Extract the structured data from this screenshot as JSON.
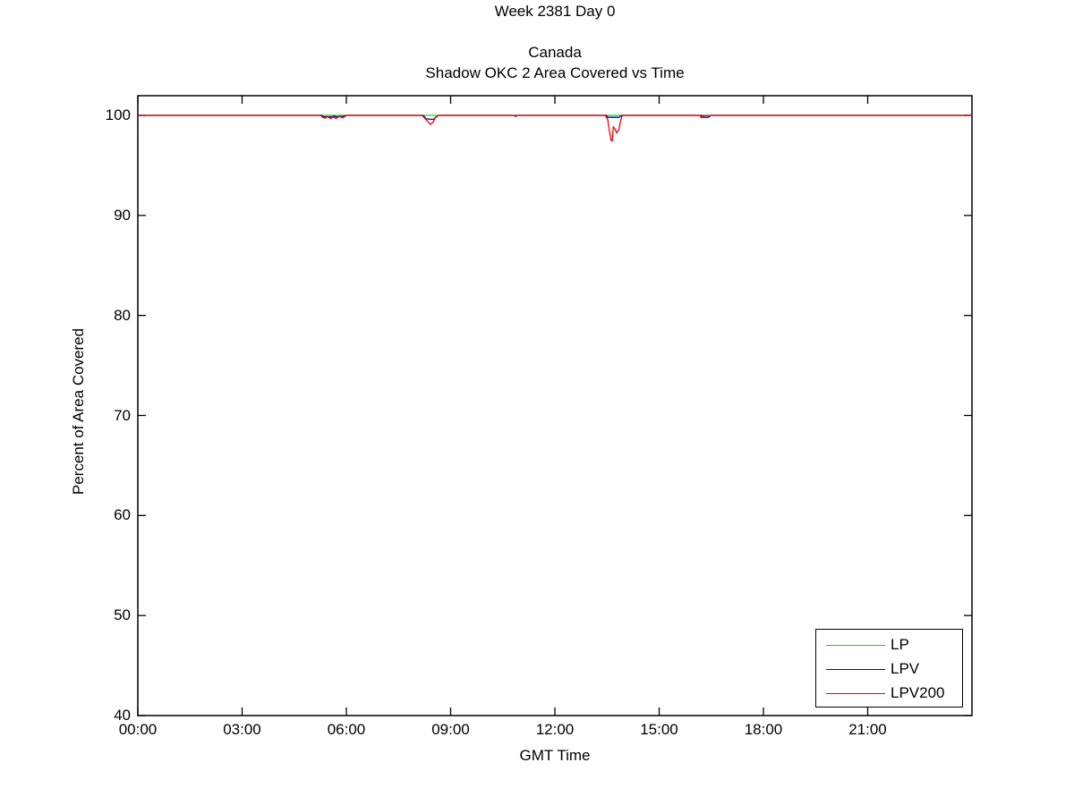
{
  "figure": {
    "suptitle": "Week 2381 Day 0",
    "title_line1": "Canada",
    "title_line2": "Shadow OKC 2 Area Covered vs Time",
    "xlabel": "GMT Time",
    "ylabel": "Percent of Area Covered"
  },
  "colors": {
    "axes": "#000000",
    "background": "#ffffff",
    "lp_green": "#00dd00",
    "lpv_blue": "#0000cc",
    "lpv200_red": "#ee0000"
  },
  "chart_data": {
    "type": "line",
    "title": "Canada — Shadow OKC 2 Area Covered vs Time",
    "suptitle": "Week 2381 Day 0",
    "xlabel": "GMT Time",
    "ylabel": "Percent of Area Covered",
    "grid": false,
    "legend_position": "bottom-right",
    "xlim_hours": [
      0,
      24
    ],
    "ylim": [
      40,
      102
    ],
    "x_ticks": [
      {
        "hour": 0,
        "label": "00:00"
      },
      {
        "hour": 3,
        "label": "03:00"
      },
      {
        "hour": 6,
        "label": "06:00"
      },
      {
        "hour": 9,
        "label": "09:00"
      },
      {
        "hour": 12,
        "label": "12:00"
      },
      {
        "hour": 15,
        "label": "15:00"
      },
      {
        "hour": 18,
        "label": "18:00"
      },
      {
        "hour": 21,
        "label": "21:00"
      }
    ],
    "y_ticks": [
      {
        "value": 100,
        "label": "100"
      },
      {
        "value": 90,
        "label": "90"
      },
      {
        "value": 80,
        "label": "80"
      },
      {
        "value": 70,
        "label": "70"
      },
      {
        "value": 60,
        "label": "60"
      },
      {
        "value": 50,
        "label": "50"
      },
      {
        "value": 40,
        "label": "40"
      }
    ],
    "series": [
      {
        "name": "LP",
        "color": "#00dd00",
        "points": [
          [
            0,
            100
          ],
          [
            24,
            100
          ]
        ]
      },
      {
        "name": "LPV",
        "color": "#0000cc",
        "points": [
          [
            0,
            100
          ],
          [
            5.3,
            100
          ],
          [
            5.35,
            99.85
          ],
          [
            5.6,
            99.85
          ],
          [
            5.65,
            99.95
          ],
          [
            5.7,
            99.85
          ],
          [
            5.9,
            99.9
          ],
          [
            6.0,
            100
          ],
          [
            8.21,
            100
          ],
          [
            8.3,
            99.65
          ],
          [
            8.5,
            99.6
          ],
          [
            8.65,
            100
          ],
          [
            10.84,
            100
          ],
          [
            10.87,
            99.88
          ],
          [
            10.9,
            100
          ],
          [
            13.48,
            100
          ],
          [
            13.52,
            99.8
          ],
          [
            13.85,
            99.8
          ],
          [
            13.92,
            100
          ],
          [
            16.22,
            100
          ],
          [
            16.26,
            99.8
          ],
          [
            16.42,
            99.8
          ],
          [
            16.48,
            100
          ],
          [
            24,
            100
          ]
        ]
      },
      {
        "name": "LPV200",
        "color": "#ee0000",
        "points": [
          [
            0,
            100
          ],
          [
            5.25,
            100
          ],
          [
            5.32,
            99.8
          ],
          [
            5.4,
            99.72
          ],
          [
            5.45,
            99.9
          ],
          [
            5.55,
            99.68
          ],
          [
            5.63,
            99.85
          ],
          [
            5.7,
            99.7
          ],
          [
            5.8,
            99.9
          ],
          [
            5.9,
            99.75
          ],
          [
            6.0,
            100
          ],
          [
            8.18,
            100
          ],
          [
            8.3,
            99.55
          ],
          [
            8.42,
            99.1
          ],
          [
            8.5,
            99.35
          ],
          [
            8.56,
            99.8
          ],
          [
            8.65,
            100
          ],
          [
            13.45,
            100
          ],
          [
            13.52,
            99.6
          ],
          [
            13.56,
            98.6
          ],
          [
            13.62,
            97.5
          ],
          [
            13.65,
            97.45
          ],
          [
            13.68,
            98.85
          ],
          [
            13.72,
            98.7
          ],
          [
            13.78,
            98.25
          ],
          [
            13.84,
            98.6
          ],
          [
            13.88,
            99.3
          ],
          [
            13.94,
            100
          ],
          [
            16.18,
            100
          ],
          [
            16.21,
            99.75
          ],
          [
            16.25,
            99.95
          ],
          [
            16.5,
            100
          ],
          [
            24,
            100
          ]
        ]
      }
    ]
  }
}
